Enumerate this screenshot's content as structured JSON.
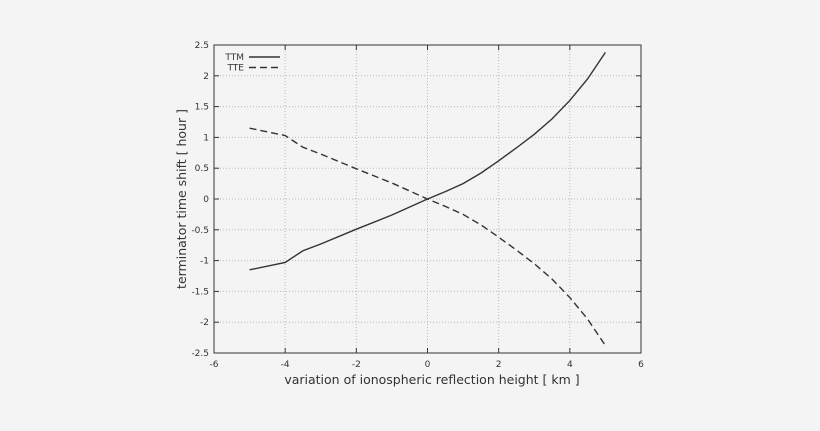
{
  "chart_data": {
    "type": "line",
    "title": "",
    "xlabel": "variation of ionospheric reflection height [ km ]",
    "ylabel": "terminator time shift [ hour ]",
    "xlim": [
      -6,
      6
    ],
    "ylim": [
      -2.5,
      2.5
    ],
    "xticks": [
      -6,
      -4,
      -2,
      0,
      2,
      4,
      6
    ],
    "yticks": [
      -2.5,
      -2,
      -1.5,
      -1,
      -0.5,
      0,
      0.5,
      1,
      1.5,
      2,
      2.5
    ],
    "grid": true,
    "legend_position": "top-left",
    "x": [
      -5,
      -4,
      -3.5,
      -3,
      -2,
      -1,
      0,
      0.5,
      1,
      1.5,
      2,
      2.5,
      3,
      3.5,
      4,
      4.5,
      5
    ],
    "series": [
      {
        "name": "TTM",
        "style": "solid",
        "color": "#333333",
        "values": [
          -1.15,
          -1.03,
          -0.84,
          -0.73,
          -0.49,
          -0.26,
          0.0,
          0.12,
          0.25,
          0.42,
          0.62,
          0.83,
          1.05,
          1.3,
          1.6,
          1.95,
          2.38
        ]
      },
      {
        "name": "TTE",
        "style": "dashed",
        "color": "#333333",
        "values": [
          1.15,
          1.03,
          0.84,
          0.73,
          0.49,
          0.26,
          0.0,
          -0.12,
          -0.25,
          -0.42,
          -0.62,
          -0.83,
          -1.05,
          -1.3,
          -1.6,
          -1.95,
          -2.38
        ]
      }
    ]
  }
}
